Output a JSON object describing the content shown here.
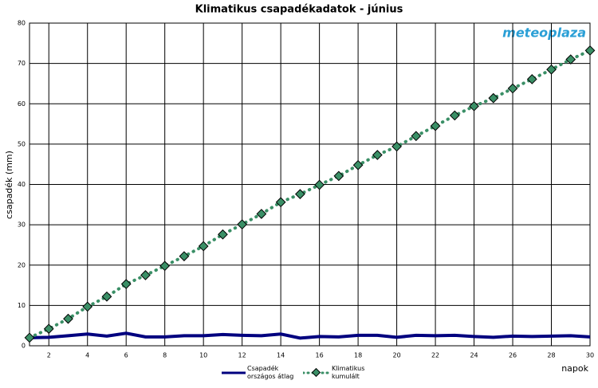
{
  "chart_data": {
    "type": "line",
    "title": "Klimatikus csapadékadatok - június",
    "x_label": "napok",
    "y_label": "csapadék (mm)",
    "logo": "meteoplaza",
    "x": [
      1,
      2,
      3,
      4,
      5,
      6,
      7,
      8,
      9,
      10,
      11,
      12,
      13,
      14,
      15,
      16,
      17,
      18,
      19,
      20,
      21,
      22,
      23,
      24,
      25,
      26,
      27,
      28,
      29,
      30
    ],
    "series": [
      {
        "name": "Csapadék\nországos átlag",
        "color": "#00007f",
        "values": [
          2.0,
          2.1,
          2.5,
          2.9,
          2.4,
          3.1,
          2.2,
          2.2,
          2.5,
          2.5,
          2.8,
          2.6,
          2.5,
          2.9,
          1.9,
          2.3,
          2.2,
          2.6,
          2.6,
          2.1,
          2.6,
          2.5,
          2.6,
          2.3,
          2.1,
          2.4,
          2.3,
          2.4,
          2.5,
          2.2
        ]
      },
      {
        "name": "Klimatikus\nkumulált",
        "color": "#3a8f66",
        "values": [
          2.0,
          4.2,
          6.7,
          9.7,
          12.2,
          15.3,
          17.5,
          19.8,
          22.2,
          24.7,
          27.6,
          30.1,
          32.7,
          35.6,
          37.6,
          39.9,
          42.1,
          44.8,
          47.3,
          49.4,
          52.0,
          54.5,
          57.1,
          59.4,
          61.4,
          63.8,
          66.1,
          68.5,
          71.0,
          73.2
        ]
      }
    ],
    "xlim": [
      1,
      30
    ],
    "xticks": [
      2,
      4,
      6,
      8,
      10,
      12,
      14,
      16,
      18,
      20,
      22,
      24,
      26,
      28,
      30
    ],
    "ylim": [
      0,
      80
    ],
    "yticks": [
      0,
      10,
      20,
      30,
      40,
      50,
      60,
      70,
      80
    ],
    "grid": true
  }
}
